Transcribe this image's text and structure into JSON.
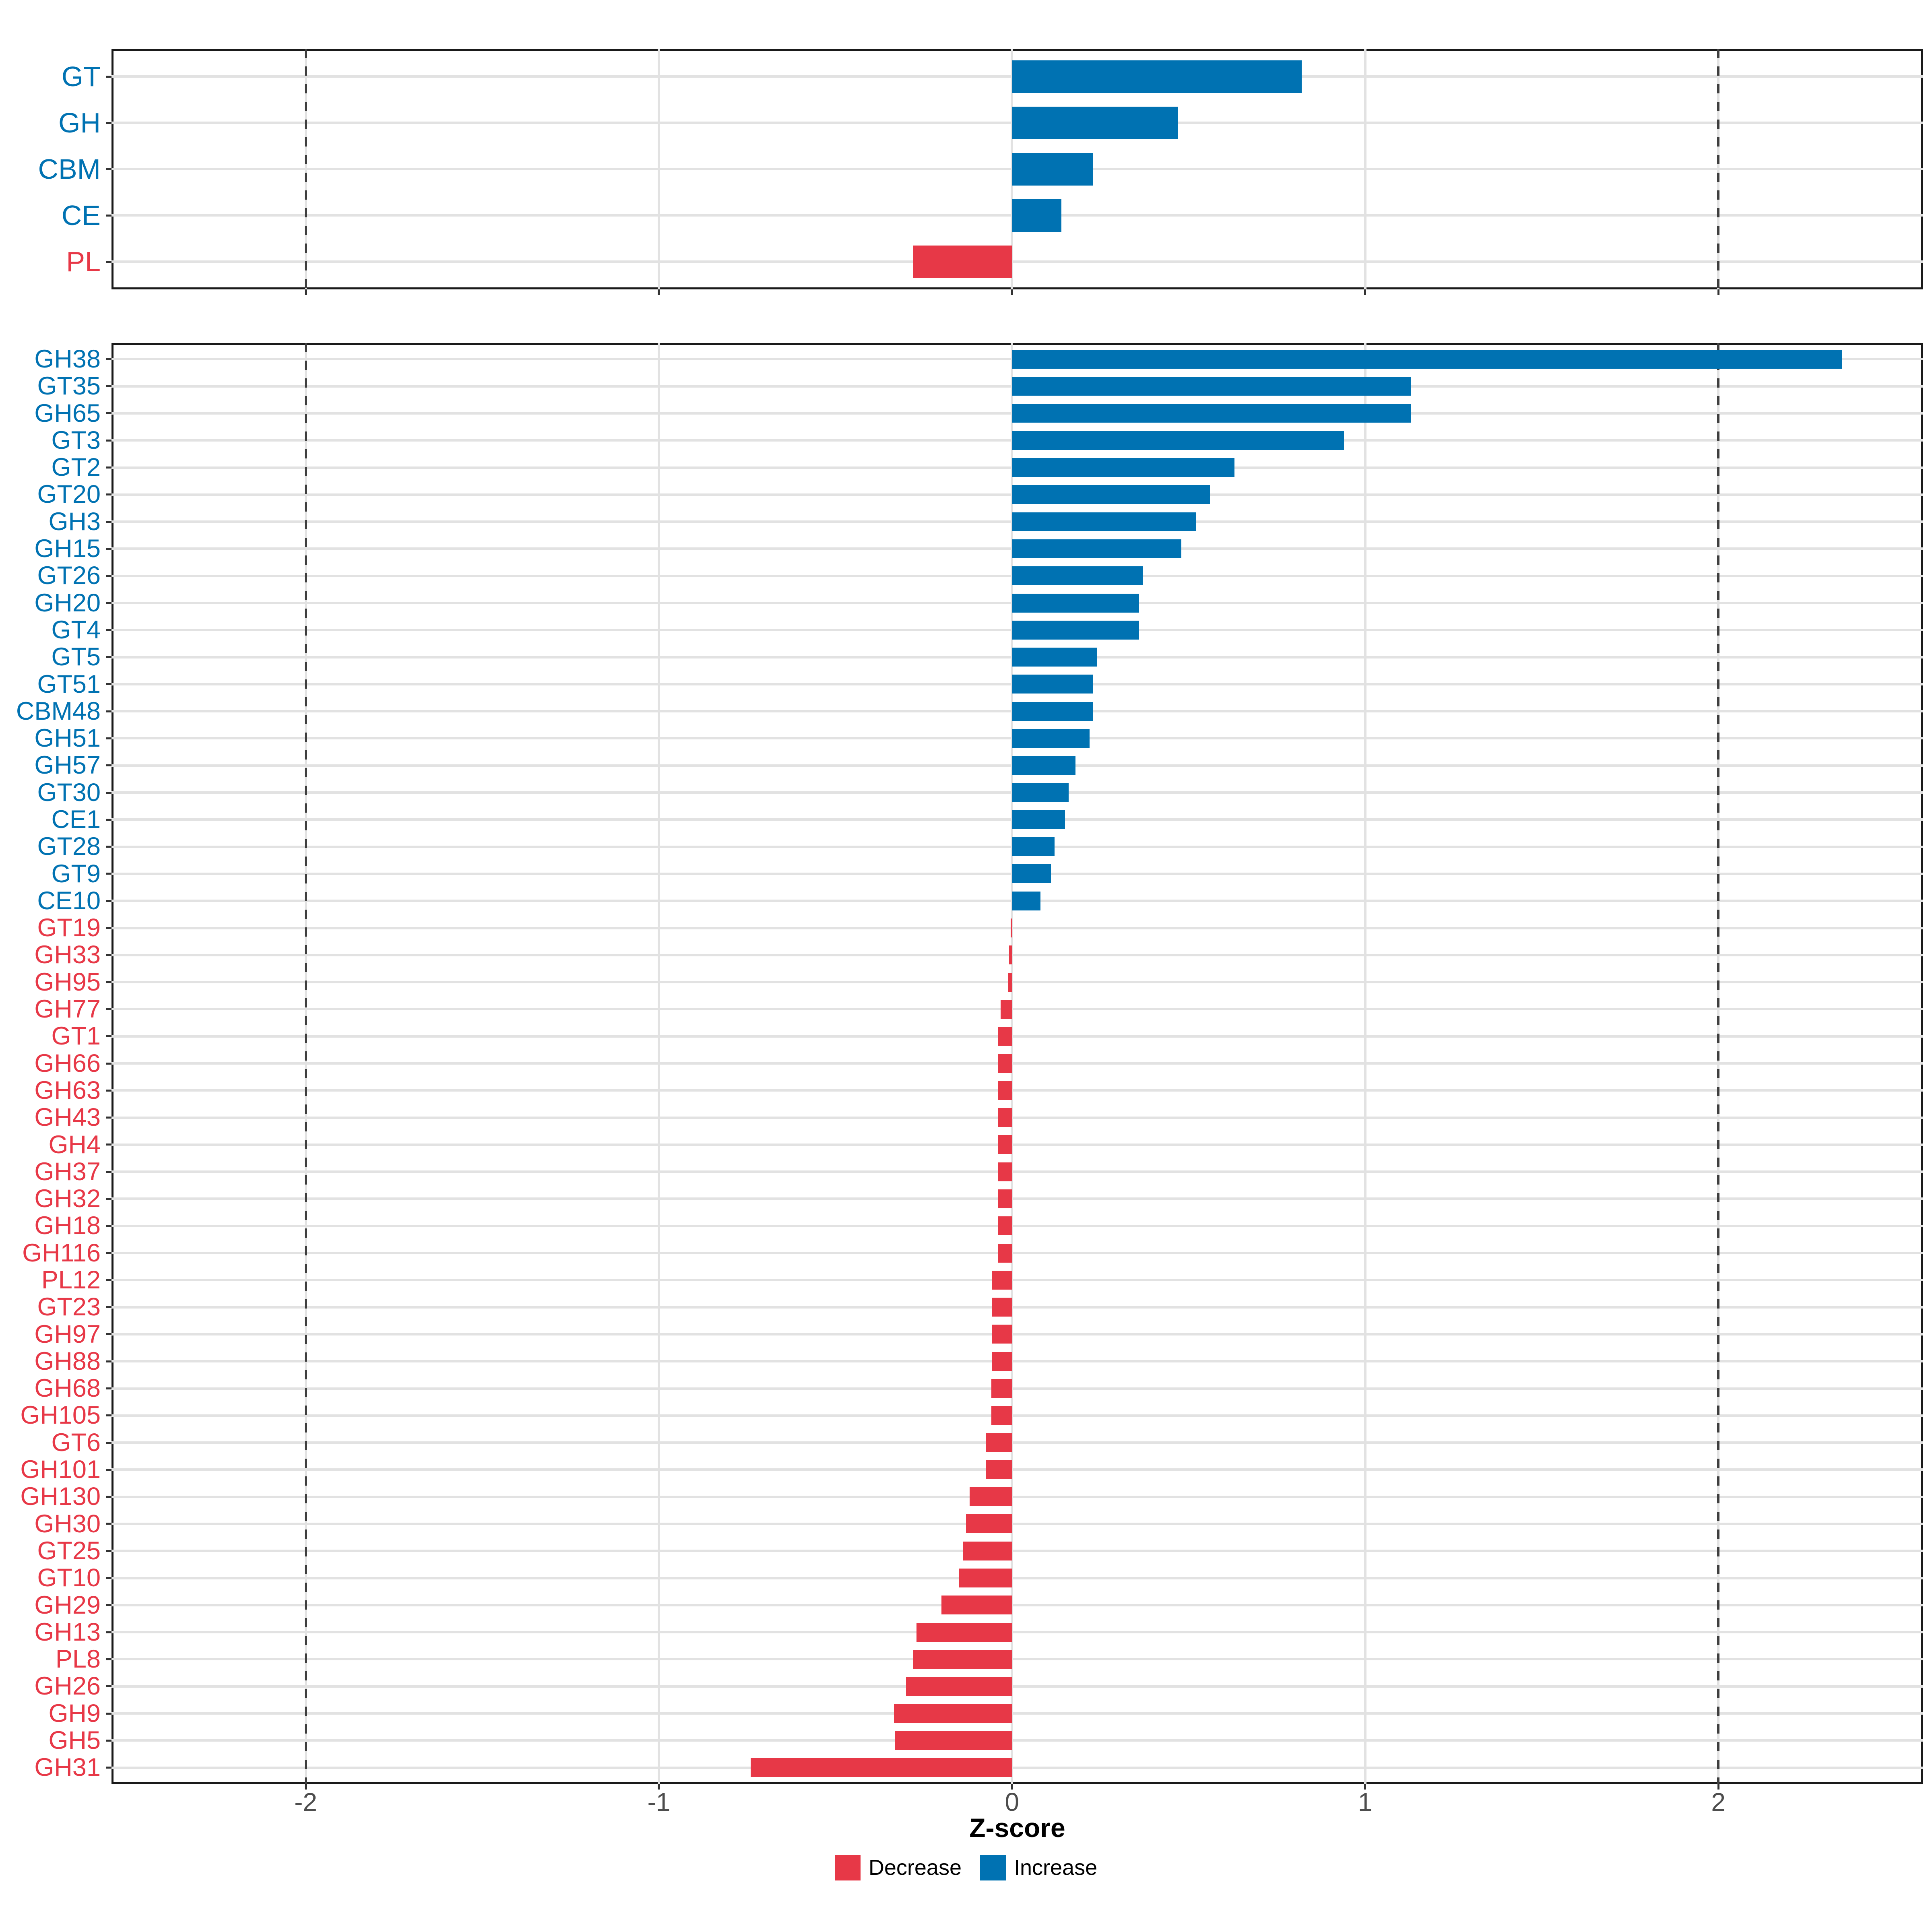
{
  "figure": {
    "background": "#ffffff",
    "x_axis": {
      "label": "Z-score",
      "ticks": [
        -2,
        -1,
        0,
        1,
        2
      ],
      "domain": [
        -2.55,
        2.58
      ],
      "dashed_at": [
        -2,
        2
      ]
    },
    "legend": {
      "items": [
        {
          "label": "Decrease",
          "color": "#e73847"
        },
        {
          "label": "Increase",
          "color": "#0072b2"
        }
      ]
    },
    "colors": {
      "increase": "#0072b2",
      "decrease": "#e73847",
      "grid": "#e2e2e2",
      "axis_text": "#4d4d4d",
      "panel_border": "#1a1a1a",
      "dashed_line": "#3f3f3f"
    }
  },
  "chart_data": [
    {
      "type": "bar",
      "orientation": "horizontal",
      "panel": "top",
      "title": "",
      "xlabel": "Z-score",
      "ylabel": "",
      "xlim": [
        -2.55,
        2.58
      ],
      "grid": true,
      "categories": [
        "GT",
        "GH",
        "CBM",
        "CE",
        "PL"
      ],
      "values": [
        0.82,
        0.47,
        0.23,
        0.14,
        -0.28
      ]
    },
    {
      "type": "bar",
      "orientation": "horizontal",
      "panel": "bottom",
      "title": "",
      "xlabel": "Z-score",
      "ylabel": "",
      "xlim": [
        -2.55,
        2.58
      ],
      "grid": true,
      "categories": [
        "GH38",
        "GT35",
        "GH65",
        "GT3",
        "GT2",
        "GT20",
        "GH3",
        "GH15",
        "GT26",
        "GH20",
        "GT4",
        "GT5",
        "GT51",
        "CBM48",
        "GH51",
        "GH57",
        "GT30",
        "CE1",
        "GT28",
        "GT9",
        "CE10",
        "GT19",
        "GH33",
        "GH95",
        "GH77",
        "GT1",
        "GH66",
        "GH63",
        "GH43",
        "GH4",
        "GH37",
        "GH32",
        "GH18",
        "GH116",
        "PL12",
        "GT23",
        "GH97",
        "GH88",
        "GH68",
        "GH105",
        "GT6",
        "GH101",
        "GH130",
        "GH30",
        "GT25",
        "GT10",
        "GH29",
        "GH13",
        "PL8",
        "GH26",
        "GH9",
        "GH5",
        "GH31"
      ],
      "values": [
        2.35,
        1.13,
        1.13,
        0.94,
        0.63,
        0.56,
        0.52,
        0.48,
        0.37,
        0.36,
        0.36,
        0.24,
        0.23,
        0.23,
        0.22,
        0.18,
        0.16,
        0.15,
        0.12,
        0.11,
        0.08,
        -0.004,
        -0.008,
        -0.012,
        -0.032,
        -0.04,
        -0.04,
        -0.04,
        -0.04,
        -0.039,
        -0.039,
        -0.04,
        -0.04,
        -0.04,
        -0.057,
        -0.057,
        -0.057,
        -0.056,
        -0.059,
        -0.059,
        -0.073,
        -0.073,
        -0.12,
        -0.13,
        -0.14,
        -0.15,
        -0.2,
        -0.27,
        -0.28,
        -0.3,
        -0.334,
        -0.332,
        -0.74
      ]
    }
  ]
}
